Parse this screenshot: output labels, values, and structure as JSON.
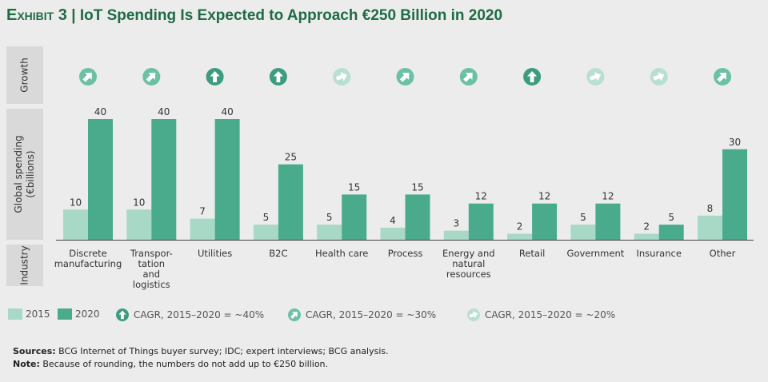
{
  "title": {
    "exhibit": "Exhibit 3",
    "separator": "|",
    "text": "IoT Spending Is Expected to Approach €250 Billion in 2020"
  },
  "side_labels": {
    "growth": "Growth",
    "spending": "Global spending\n(€billions)",
    "industry": "Industry"
  },
  "colors": {
    "y2015": "#a8d8c6",
    "y2020": "#4aab8c",
    "title": "#1f6b45",
    "icon_40": "#3d9c7f",
    "icon_30": "#6cc0a3",
    "icon_20": "#b8dfd2"
  },
  "chart_data": {
    "type": "bar",
    "categories": [
      "Discrete\nmanufacturing",
      "Transpor-\ntation\nand\nlogistics",
      "Utilities",
      "B2C",
      "Health care",
      "Process",
      "Energy and\nnatural\nresources",
      "Retail",
      "Government",
      "Insurance",
      "Other"
    ],
    "series": [
      {
        "name": "2015",
        "values": [
          10,
          10,
          7,
          5,
          5,
          4,
          3,
          2,
          5,
          2,
          8
        ]
      },
      {
        "name": "2020",
        "values": [
          40,
          40,
          40,
          25,
          15,
          15,
          12,
          12,
          12,
          5,
          30
        ]
      }
    ],
    "growth": [
      "30",
      "30",
      "40",
      "40",
      "20",
      "30",
      "30",
      "40",
      "20",
      "20",
      "30"
    ],
    "ylim": [
      0,
      40
    ]
  },
  "legend": {
    "y2015": "2015",
    "y2020": "2020",
    "cagr40": "CAGR, 2015–2020 = ~40%",
    "cagr30": "CAGR, 2015–2020 = ~30%",
    "cagr20": "CAGR, 2015–2020 = ~20%"
  },
  "notes": {
    "sources_label": "Sources:",
    "sources": "BCG Internet of Things buyer survey; IDC; expert interviews; BCG analysis.",
    "note_label": "Note:",
    "note": "Because of rounding, the numbers do not add up to €250 billion."
  }
}
